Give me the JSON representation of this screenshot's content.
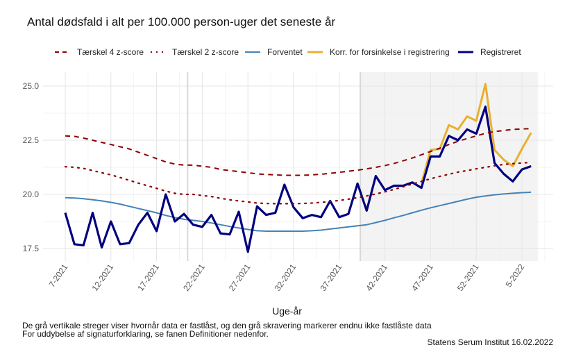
{
  "chart_data": {
    "type": "line",
    "title": "Antal dødsfald i alt per 100.000 person-uger det seneste år",
    "xlabel": "Uge-år",
    "ylabel": "",
    "ylim": [
      17.0,
      25.5
    ],
    "yticks": [
      17.5,
      20.0,
      22.5,
      25.0
    ],
    "ytick_labels": [
      "17.5",
      "20.0",
      "22.5",
      "25.0"
    ],
    "x": [
      "7-2021",
      "8-2021",
      "9-2021",
      "10-2021",
      "11-2021",
      "12-2021",
      "13-2021",
      "14-2021",
      "15-2021",
      "16-2021",
      "17-2021",
      "18-2021",
      "19-2021",
      "20-2021",
      "21-2021",
      "22-2021",
      "23-2021",
      "24-2021",
      "25-2021",
      "26-2021",
      "27-2021",
      "28-2021",
      "29-2021",
      "30-2021",
      "31-2021",
      "32-2021",
      "33-2021",
      "34-2021",
      "35-2021",
      "36-2021",
      "37-2021",
      "38-2021",
      "39-2021",
      "40-2021",
      "41-2021",
      "42-2021",
      "43-2021",
      "44-2021",
      "45-2021",
      "46-2021",
      "47-2021",
      "48-2021",
      "49-2021",
      "50-2021",
      "51-2021",
      "52-2021",
      "1-2022",
      "2-2022",
      "3-2022",
      "4-2022",
      "5-2022",
      "6-2022"
    ],
    "xtick_labels": [
      "7-2021",
      "12-2021",
      "17-2021",
      "22-2021",
      "27-2021",
      "32-2021",
      "37-2021",
      "42-2021",
      "47-2021",
      "52-2021",
      "5-2022"
    ],
    "xtick_indices": [
      0,
      5,
      10,
      15,
      20,
      25,
      30,
      35,
      40,
      45,
      50
    ],
    "grid": true,
    "legend_position": "top",
    "locked_line_index": 13.4,
    "unlocked_shading_start_index": 32.3,
    "unlocked_shading_end_index": 51,
    "series": [
      {
        "name": "Tærskel 4 z-score",
        "color": "#8B0000",
        "style": "dashed",
        "values": [
          22.7,
          22.68,
          22.6,
          22.5,
          22.4,
          22.3,
          22.2,
          22.1,
          21.95,
          21.8,
          21.65,
          21.5,
          21.4,
          21.35,
          21.35,
          21.3,
          21.25,
          21.15,
          21.1,
          21.05,
          21.0,
          20.95,
          20.92,
          20.9,
          20.88,
          20.88,
          20.88,
          20.9,
          20.93,
          20.97,
          21.02,
          21.07,
          21.12,
          21.18,
          21.25,
          21.33,
          21.43,
          21.55,
          21.68,
          21.83,
          21.98,
          22.13,
          22.3,
          22.45,
          22.58,
          22.7,
          22.82,
          22.9,
          22.95,
          23.0,
          23.02,
          23.04
        ]
      },
      {
        "name": "Tærskel 2 z-score",
        "color": "#8B0000",
        "style": "dotted",
        "values": [
          21.28,
          21.25,
          21.2,
          21.1,
          21.0,
          20.9,
          20.78,
          20.65,
          20.52,
          20.4,
          20.28,
          20.15,
          20.05,
          20.0,
          20.0,
          19.95,
          19.9,
          19.82,
          19.75,
          19.7,
          19.65,
          19.6,
          19.58,
          19.57,
          19.57,
          19.57,
          19.58,
          19.6,
          19.63,
          19.67,
          19.72,
          19.78,
          19.85,
          19.93,
          20.02,
          20.12,
          20.23,
          20.35,
          20.48,
          20.6,
          20.72,
          20.83,
          20.93,
          21.03,
          21.1,
          21.18,
          21.25,
          21.32,
          21.38,
          21.42,
          21.45,
          21.47
        ]
      },
      {
        "name": "Forventet",
        "color": "#4682B4",
        "style": "solid",
        "values": [
          19.85,
          19.83,
          19.8,
          19.75,
          19.7,
          19.63,
          19.55,
          19.45,
          19.35,
          19.25,
          19.15,
          19.03,
          18.93,
          18.85,
          18.8,
          18.75,
          18.68,
          18.6,
          18.52,
          18.45,
          18.38,
          18.32,
          18.3,
          18.3,
          18.3,
          18.3,
          18.3,
          18.32,
          18.35,
          18.4,
          18.45,
          18.5,
          18.55,
          18.6,
          18.7,
          18.8,
          18.92,
          19.03,
          19.15,
          19.27,
          19.38,
          19.48,
          19.58,
          19.68,
          19.78,
          19.87,
          19.93,
          19.98,
          20.02,
          20.05,
          20.08,
          20.1
        ]
      },
      {
        "name": "Korr. for forsinkelse i registrering",
        "color": "#E8B030",
        "style": "solid",
        "values": [
          null,
          null,
          null,
          null,
          null,
          null,
          null,
          null,
          null,
          null,
          null,
          null,
          null,
          null,
          null,
          null,
          null,
          null,
          null,
          null,
          null,
          null,
          null,
          null,
          null,
          null,
          null,
          null,
          null,
          null,
          null,
          null,
          null,
          null,
          null,
          null,
          null,
          null,
          null,
          20.5,
          22.05,
          22.1,
          23.2,
          23.0,
          23.6,
          23.4,
          25.1,
          22.05,
          21.6,
          21.3,
          22.1,
          22.85
        ]
      },
      {
        "name": "Registreret",
        "color": "#000080",
        "style": "solid",
        "values": [
          19.15,
          17.7,
          17.65,
          19.15,
          17.55,
          18.75,
          17.7,
          17.75,
          18.6,
          19.15,
          18.3,
          20.0,
          18.75,
          19.1,
          18.6,
          18.5,
          19.05,
          18.2,
          18.15,
          19.2,
          17.35,
          19.45,
          19.05,
          19.15,
          20.45,
          19.4,
          18.9,
          19.05,
          18.95,
          19.7,
          18.95,
          19.1,
          20.5,
          19.25,
          20.85,
          20.2,
          20.4,
          20.4,
          20.55,
          20.3,
          21.75,
          21.75,
          22.7,
          22.5,
          23.0,
          22.8,
          24.05,
          21.45,
          20.95,
          20.6,
          21.15,
          21.3
        ]
      }
    ]
  },
  "legend": {
    "items": [
      {
        "label": "Tærskel 4 z-score"
      },
      {
        "label": "Tærskel 2 z-score"
      },
      {
        "label": "Forventet"
      },
      {
        "label": "Korr. for forsinkelse i registrering"
      },
      {
        "label": "Registreret"
      }
    ]
  },
  "footer": {
    "note_line1": "De grå vertikale streger viser hvornår data er fastlåst, og den grå skravering markerer endnu ikke fastlåste data",
    "note_line2": "For uddybelse af signaturforklaring, se fanen Definitioner nedenfor.",
    "source": "Statens Serum Institut  16.02.2022"
  }
}
